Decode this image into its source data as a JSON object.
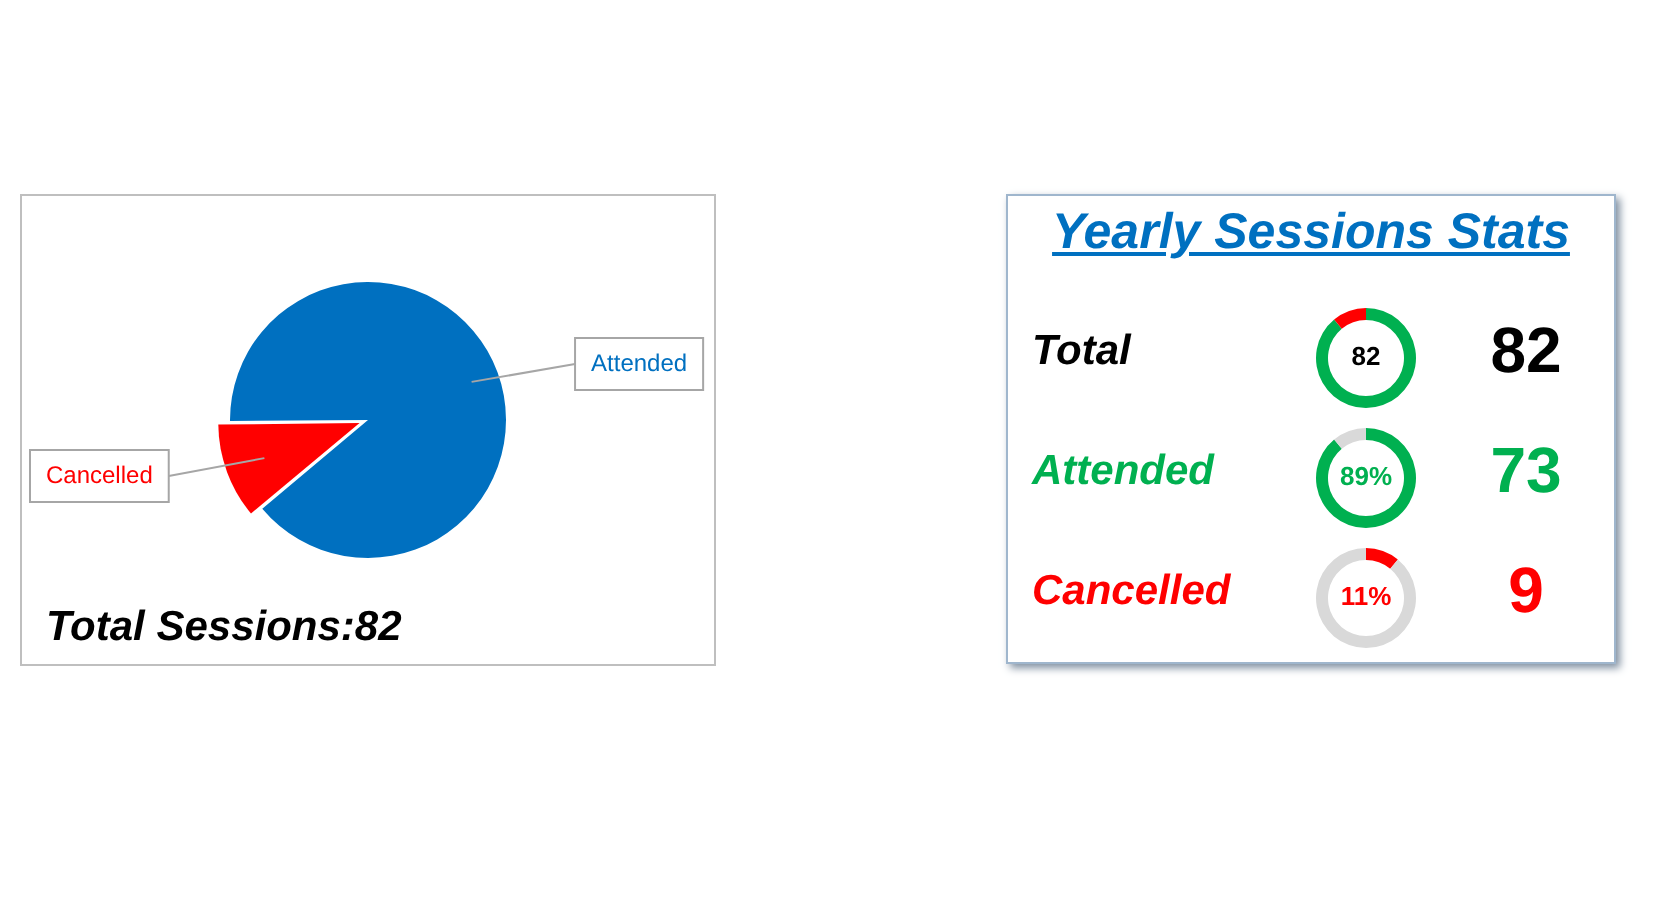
{
  "chart_data": [
    {
      "type": "pie",
      "categories": [
        "Cancelled",
        "Attended"
      ],
      "values": [
        11,
        89
      ],
      "colors": [
        "#ff0000",
        "#0070c0"
      ],
      "legend": false,
      "annotations": [
        "Total Sessions:82"
      ]
    },
    {
      "type": "other",
      "title": "Yearly Sessions Stats"
    },
    {
      "type": "donut",
      "title": "Total",
      "categories": [
        null,
        null
      ],
      "values": [
        89,
        11
      ],
      "colors": [
        "#00b050",
        "#ff0000"
      ],
      "annotations": [
        "82",
        "82"
      ]
    },
    {
      "type": "donut",
      "title": "Attended",
      "categories": [
        null,
        null
      ],
      "values": [
        89,
        11
      ],
      "colors": [
        "#00b050",
        "#d9d9d9"
      ],
      "annotations": [
        "89%",
        "73"
      ]
    },
    {
      "type": "donut",
      "title": "Cancelled",
      "categories": [
        null,
        null
      ],
      "values": [
        11,
        89
      ],
      "colors": [
        "#ff0000",
        "#d9d9d9"
      ],
      "annotations": [
        "11%",
        "9"
      ]
    }
  ]
}
